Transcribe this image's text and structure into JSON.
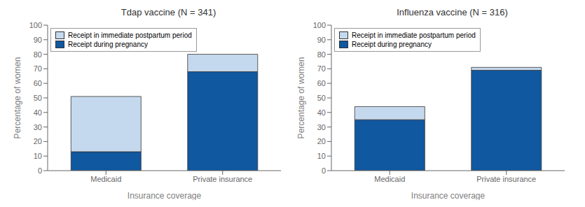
{
  "chart_data": [
    {
      "type": "bar",
      "stacked": true,
      "title": "Tdap vaccine (N = 341)",
      "categories": [
        "Medicaid",
        "Private insurance"
      ],
      "series": [
        {
          "name": "Receipt during pregnancy",
          "color": "#1058a0",
          "values": [
            13,
            68
          ]
        },
        {
          "name": "Receipt in immediate postpartum period",
          "color": "#c5d9ee",
          "values": [
            38,
            12
          ]
        }
      ],
      "xlabel": "Insurance coverage",
      "ylabel": "Percentage of women",
      "ylim": [
        0,
        100
      ],
      "yticks": [
        0,
        10,
        20,
        30,
        40,
        50,
        60,
        70,
        80,
        90,
        100
      ],
      "grid": false,
      "legend": "upper left"
    },
    {
      "type": "bar",
      "stacked": true,
      "title": "Influenza vaccine (N = 316)",
      "categories": [
        "Medicaid",
        "Private insurance"
      ],
      "series": [
        {
          "name": "Receipt during pregnancy",
          "color": "#1058a0",
          "values": [
            35,
            69
          ]
        },
        {
          "name": "Receipt in immediate postpartum period",
          "color": "#c5d9ee",
          "values": [
            9,
            2
          ]
        }
      ],
      "xlabel": "Insurance coverage",
      "ylabel": "Percentage of women",
      "ylim": [
        0,
        100
      ],
      "yticks": [
        0,
        10,
        20,
        30,
        40,
        50,
        60,
        70,
        80,
        90,
        100
      ],
      "grid": false,
      "legend": "upper left"
    }
  ]
}
